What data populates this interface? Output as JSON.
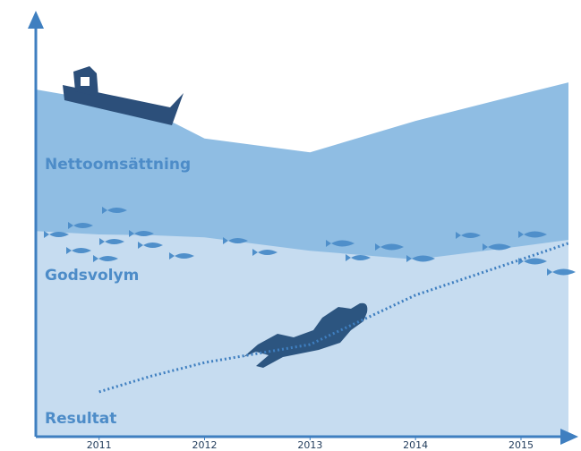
{
  "chart_data": {
    "type": "area",
    "x": [
      2010.4,
      2011,
      2011.5,
      2012,
      2013,
      2014,
      2015,
      2015.45
    ],
    "series": [
      {
        "name": "Nettoomsättning",
        "kind": "area",
        "color": "#8fbde3",
        "values": [
          82.9,
          80.3,
          77.6,
          71.2,
          67.9,
          75.4,
          81.8,
          84.6
        ]
      },
      {
        "name": "Godsvolym",
        "kind": "area",
        "color": "#c6dcf0",
        "values": [
          49.1,
          48.3,
          48.1,
          47.6,
          44.4,
          42.3,
          45.5,
          47.0
        ]
      },
      {
        "name": "Resultat",
        "kind": "dotted-line",
        "color": "#3f7fc0",
        "values": [
          null,
          10.7,
          14.5,
          17.7,
          22.0,
          33.8,
          42.3,
          46.2
        ]
      }
    ],
    "xlim": [
      2010.4,
      2015.45
    ],
    "ylim": [
      0,
      100
    ],
    "xticks": [
      2011,
      2012,
      2013,
      2014,
      2015
    ]
  }
}
